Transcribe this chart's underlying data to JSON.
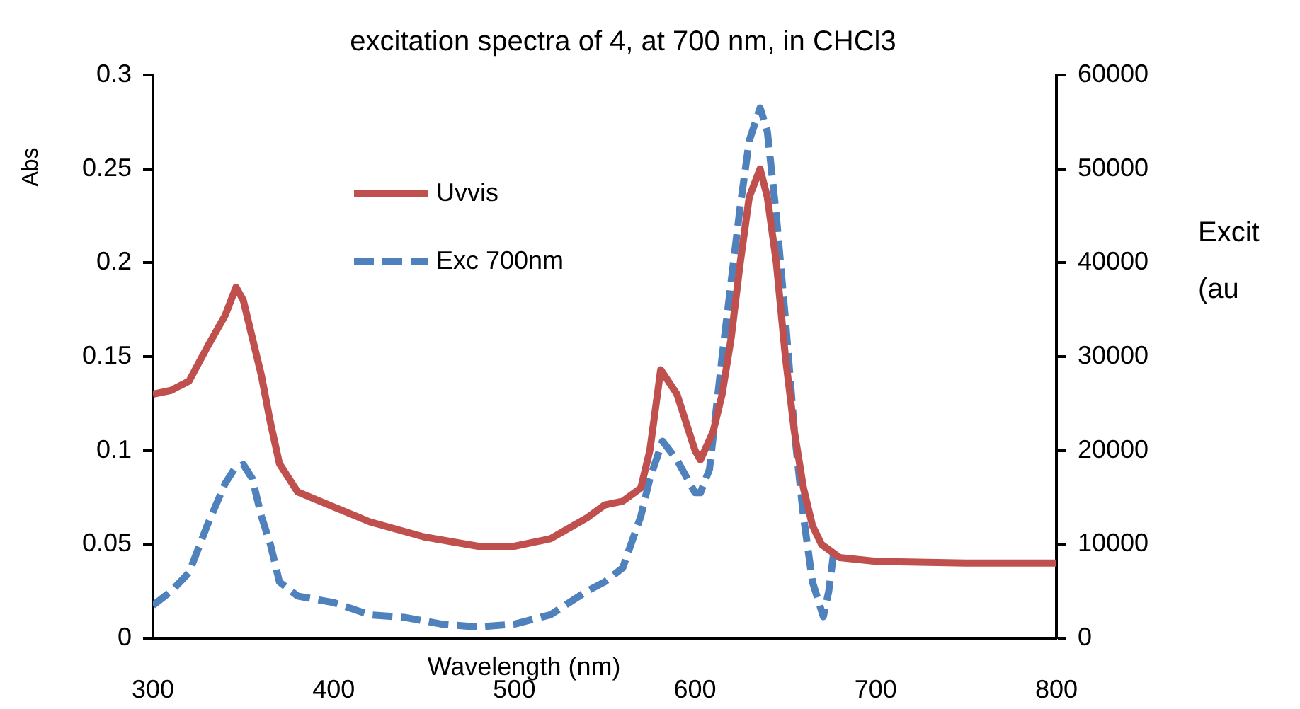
{
  "chart_data": {
    "type": "line",
    "title": "excitation spectra of 4, at 700 nm, in CHCl3",
    "xlabel": "Wavelength (nm)",
    "ylabel": "Abs",
    "y2label": "Excit (au",
    "xlim": [
      300,
      800
    ],
    "xticks": [
      300,
      400,
      500,
      600,
      700,
      800
    ],
    "ylim": [
      0,
      0.3
    ],
    "yticks": [
      0,
      0.05,
      0.1,
      0.15,
      0.2,
      0.25,
      0.3
    ],
    "y2lim": [
      0,
      60000
    ],
    "y2ticks": [
      0,
      10000,
      20000,
      30000,
      40000,
      50000,
      60000
    ],
    "grid": false,
    "legend": "top left",
    "marker": "none",
    "series": [
      {
        "name": "Uvvis",
        "color": "#c0504d",
        "line_style": "solid",
        "x": [
          300,
          310,
          320,
          330,
          340,
          346,
          350,
          355,
          360,
          365,
          370,
          380,
          400,
          420,
          450,
          480,
          500,
          520,
          540,
          550,
          560,
          570,
          575,
          581,
          590,
          600,
          603,
          610,
          615,
          620,
          625,
          630,
          636,
          640,
          645,
          650,
          655,
          660,
          665,
          670,
          680,
          700,
          750,
          800
        ],
        "values": [
          0.13,
          0.132,
          0.137,
          0.155,
          0.172,
          0.187,
          0.18,
          0.16,
          0.14,
          0.115,
          0.093,
          0.078,
          0.07,
          0.062,
          0.054,
          0.049,
          0.049,
          0.053,
          0.064,
          0.071,
          0.073,
          0.08,
          0.1,
          0.143,
          0.13,
          0.1,
          0.095,
          0.11,
          0.13,
          0.16,
          0.2,
          0.235,
          0.25,
          0.235,
          0.2,
          0.15,
          0.11,
          0.08,
          0.06,
          0.05,
          0.043,
          0.041,
          0.04,
          0.04
        ]
      },
      {
        "name": "Exc 700nm",
        "color": "#4f81bd",
        "line_style": "dashed",
        "axis": "y2",
        "x": [
          300,
          310,
          320,
          330,
          340,
          345,
          350,
          355,
          360,
          365,
          370,
          380,
          400,
          420,
          440,
          460,
          480,
          500,
          520,
          540,
          550,
          560,
          570,
          575,
          582,
          590,
          600,
          603,
          608,
          615,
          620,
          625,
          630,
          636,
          640,
          645,
          650,
          655,
          660,
          665,
          671,
          674,
          677
        ],
        "values": [
          3500,
          5000,
          7000,
          12000,
          16500,
          18000,
          18500,
          17000,
          13000,
          10000,
          6000,
          4500,
          3800,
          2500,
          2200,
          1500,
          1200,
          1500,
          2500,
          5000,
          6000,
          7500,
          13000,
          17000,
          21000,
          19000,
          15500,
          15500,
          18000,
          30000,
          38000,
          46000,
          53000,
          56500,
          54000,
          45000,
          34000,
          22000,
          13000,
          6000,
          2300,
          5000,
          9500
        ]
      }
    ]
  }
}
